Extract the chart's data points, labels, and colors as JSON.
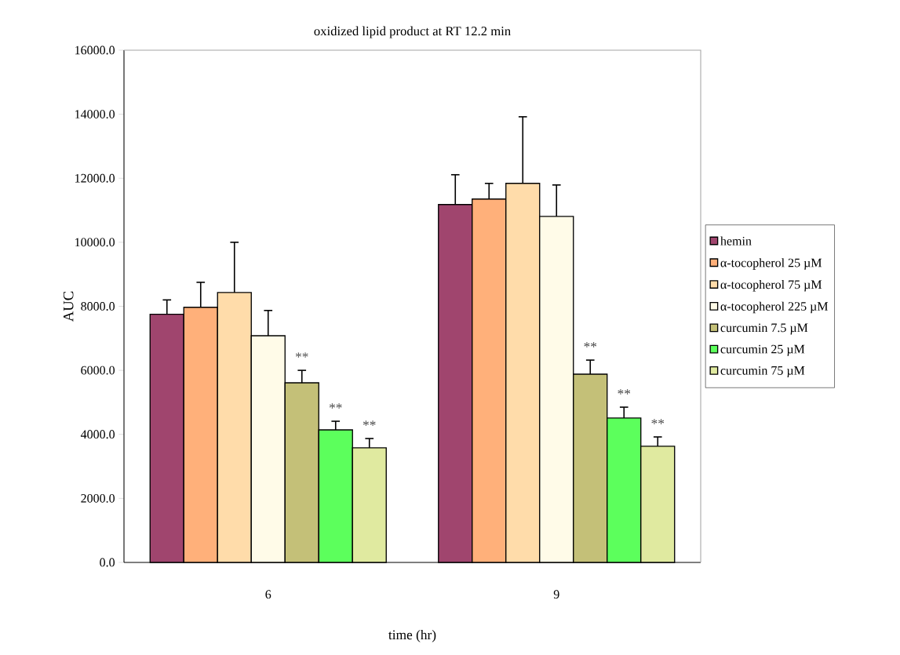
{
  "chart_data": {
    "type": "bar",
    "title": "oxidized lipid product at RT 12.2 min",
    "xlabel": "time (hr)",
    "ylabel": "AUC",
    "categories": [
      "6",
      "9"
    ],
    "series": [
      {
        "name": "hemin",
        "color": "#a0456e",
        "values": [
          7750,
          11180
        ],
        "errors": [
          450,
          930
        ]
      },
      {
        "name": "α-tocopherol 25 µM",
        "color": "#ffb07a",
        "values": [
          7970,
          11350
        ],
        "errors": [
          780,
          490
        ]
      },
      {
        "name": "α-tocopherol 75 µM",
        "color": "#ffdcaa",
        "values": [
          8430,
          11840
        ],
        "errors": [
          1570,
          2080
        ]
      },
      {
        "name": "α-tocopherol 225 µM",
        "color": "#fffbe8",
        "values": [
          7080,
          10810
        ],
        "errors": [
          790,
          980
        ]
      },
      {
        "name": "curcumin 7.5 µM",
        "color": "#c4c078",
        "values": [
          5610,
          5880
        ],
        "errors": [
          390,
          440
        ]
      },
      {
        "name": "curcumin 25 µM",
        "color": "#5cff5c",
        "values": [
          4140,
          4510
        ],
        "errors": [
          270,
          340
        ]
      },
      {
        "name": "curcumin 75 µM",
        "color": "#e0eaa0",
        "values": [
          3580,
          3630
        ],
        "errors": [
          290,
          290
        ]
      }
    ],
    "ylim": [
      0,
      16000
    ],
    "yticks": [
      {
        "value": 0,
        "label": "0.0"
      },
      {
        "value": 2000,
        "label": "2000.0"
      },
      {
        "value": 4000,
        "label": "4000.0"
      },
      {
        "value": 6000,
        "label": "6000.0"
      },
      {
        "value": 8000,
        "label": "8000.0"
      },
      {
        "value": 10000,
        "label": "10000.0"
      },
      {
        "value": 12000,
        "label": "12000.0"
      },
      {
        "value": 14000,
        "label": "14000.0"
      },
      {
        "value": 16000,
        "label": "16000.0"
      }
    ],
    "annotations": [
      "**",
      "**",
      "**",
      "**",
      "**",
      "**"
    ],
    "legend": "right",
    "grid": false
  }
}
